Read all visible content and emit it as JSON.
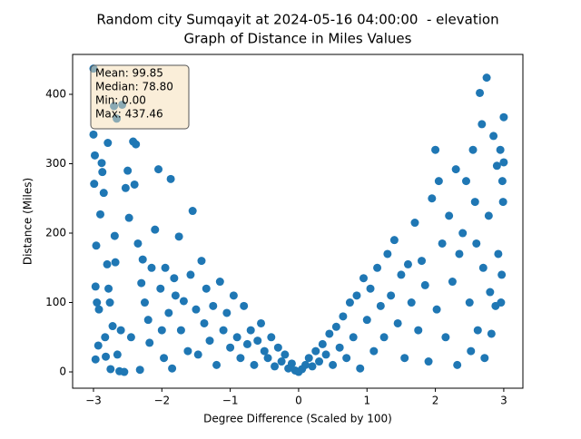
{
  "chart_data": {
    "type": "scatter",
    "title": "Random city Sumqayit at 2024-05-16 04:00:00  - elevation",
    "subtitle": "Graph of Distance in Miles Values",
    "xlabel": "Degree Difference (Scaled by 100)",
    "ylabel": "Distance (Miles)",
    "annotation": [
      "Mean: 99.85",
      "Median: 78.80",
      "Min: 0.00",
      "Max: 437.46"
    ],
    "color": "#1f77b4",
    "xlim": [
      -3.305,
      3.28
    ],
    "ylim": [
      -23.5,
      457.5
    ],
    "xticks": [
      {
        "value": -3,
        "label": "−3"
      },
      {
        "value": -2,
        "label": "−2"
      },
      {
        "value": -1,
        "label": "−1"
      },
      0,
      1,
      2,
      3
    ],
    "yticks": [
      0,
      100,
      200,
      300,
      400
    ],
    "grid": false,
    "x": [
      -3.0,
      -3.0,
      -2.98,
      -2.99,
      -2.96,
      -2.97,
      -2.95,
      -2.97,
      -2.93,
      -2.92,
      -2.9,
      -2.88,
      -2.87,
      -2.85,
      -2.83,
      -2.82,
      -2.8,
      -2.79,
      -2.78,
      -2.76,
      -2.75,
      -2.72,
      -2.7,
      -2.69,
      -2.68,
      -2.66,
      -2.65,
      -2.62,
      -2.6,
      -2.58,
      -2.55,
      -2.53,
      -2.5,
      -2.48,
      -2.45,
      -2.42,
      -2.4,
      -2.38,
      -2.35,
      -2.32,
      -2.3,
      -2.28,
      -2.25,
      -2.2,
      -2.18,
      -2.15,
      -2.1,
      -2.05,
      -2.02,
      -2.0,
      -1.97,
      -1.95,
      -1.9,
      -1.87,
      -1.85,
      -1.82,
      -1.8,
      -1.75,
      -1.72,
      -1.68,
      -1.62,
      -1.58,
      -1.55,
      -1.5,
      -1.47,
      -1.42,
      -1.38,
      -1.35,
      -1.3,
      -1.25,
      -1.2,
      -1.15,
      -1.1,
      -1.05,
      -1.0,
      -0.95,
      -0.9,
      -0.85,
      -0.8,
      -0.75,
      -0.7,
      -0.65,
      -0.6,
      -0.55,
      -0.5,
      -0.45,
      -0.4,
      -0.35,
      -0.3,
      -0.25,
      -0.2,
      -0.15,
      -0.1,
      -0.05,
      0.0,
      0.05,
      0.1,
      0.15,
      0.2,
      0.25,
      0.3,
      0.35,
      0.4,
      0.45,
      0.5,
      0.55,
      0.6,
      0.65,
      0.7,
      0.75,
      0.8,
      0.85,
      0.9,
      0.95,
      1.0,
      1.05,
      1.1,
      1.15,
      1.2,
      1.25,
      1.3,
      1.35,
      1.4,
      1.45,
      1.5,
      1.55,
      1.6,
      1.65,
      1.7,
      1.75,
      1.8,
      1.85,
      1.9,
      1.95,
      2.0,
      2.02,
      2.05,
      2.1,
      2.15,
      2.2,
      2.25,
      2.3,
      2.32,
      2.35,
      2.4,
      2.45,
      2.5,
      2.52,
      2.55,
      2.58,
      2.6,
      2.62,
      2.65,
      2.68,
      2.7,
      2.72,
      2.75,
      2.78,
      2.8,
      2.82,
      2.85,
      2.88,
      2.9,
      2.92,
      2.95,
      2.97,
      2.98,
      3.0,
      3.0,
      2.99,
      2.96
    ],
    "values": [
      437,
      342,
      312,
      271,
      182,
      123,
      100,
      18,
      38,
      90,
      227,
      301,
      288,
      258,
      50,
      22,
      155,
      330,
      120,
      100,
      4,
      66,
      383,
      196,
      158,
      365,
      25,
      1,
      60,
      385,
      0,
      265,
      290,
      222,
      50,
      332,
      270,
      328,
      185,
      3,
      128,
      162,
      100,
      75,
      42,
      150,
      205,
      292,
      120,
      60,
      20,
      150,
      85,
      278,
      5,
      135,
      110,
      195,
      60,
      102,
      30,
      140,
      232,
      90,
      25,
      160,
      70,
      120,
      45,
      95,
      10,
      130,
      60,
      85,
      35,
      110,
      50,
      20,
      95,
      40,
      60,
      10,
      45,
      70,
      30,
      20,
      50,
      8,
      35,
      15,
      25,
      5,
      12,
      2,
      0,
      4,
      10,
      20,
      8,
      30,
      15,
      40,
      25,
      55,
      10,
      65,
      35,
      80,
      20,
      100,
      50,
      110,
      5,
      135,
      75,
      120,
      30,
      150,
      95,
      50,
      170,
      110,
      190,
      70,
      140,
      20,
      155,
      100,
      215,
      60,
      160,
      125,
      15,
      250,
      320,
      90,
      275,
      185,
      50,
      225,
      130,
      292,
      10,
      170,
      200,
      275,
      100,
      30,
      320,
      245,
      185,
      60,
      402,
      357,
      150,
      20,
      424,
      225,
      115,
      55,
      340,
      95,
      297,
      170,
      320,
      140,
      275,
      367,
      302,
      245,
      100
    ]
  }
}
